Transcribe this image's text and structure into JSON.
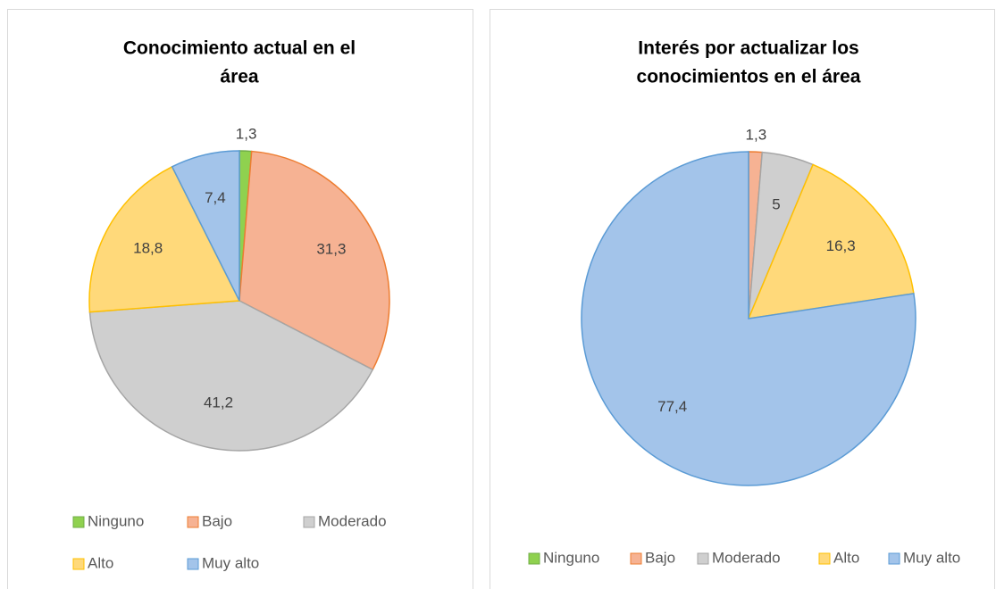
{
  "chart_data": [
    {
      "type": "pie",
      "title": [
        "Conocimiento actual en el",
        "área"
      ],
      "categories": [
        "Ninguno",
        "Bajo",
        "Moderado",
        "Alto",
        "Muy alto"
      ],
      "values": [
        1.3,
        31.3,
        41.2,
        18.8,
        7.4
      ],
      "value_labels": [
        "1,3",
        "31,3",
        "41,2",
        "18,8",
        "7,4"
      ],
      "colors": [
        "#8fd14f",
        "#f6b293",
        "#cfcfcf",
        "#ffd97a",
        "#a3c4ea"
      ],
      "edge_colors": [
        "#70ad47",
        "#ed7d31",
        "#a5a5a5",
        "#ffc000",
        "#5b9bd5"
      ]
    },
    {
      "type": "pie",
      "title": [
        "Interés por actualizar los",
        "conocimientos en el área"
      ],
      "categories": [
        "Ninguno",
        "Bajo",
        "Moderado",
        "Alto",
        "Muy alto"
      ],
      "values": [
        0,
        1.3,
        5,
        16.3,
        77.4
      ],
      "value_labels": [
        null,
        "1,3",
        "5",
        "16,3",
        "77,4"
      ],
      "colors": [
        "#8fd14f",
        "#f6b293",
        "#cfcfcf",
        "#ffd97a",
        "#a3c4ea"
      ],
      "edge_colors": [
        "#70ad47",
        "#ed7d31",
        "#a5a5a5",
        "#ffc000",
        "#5b9bd5"
      ]
    }
  ]
}
